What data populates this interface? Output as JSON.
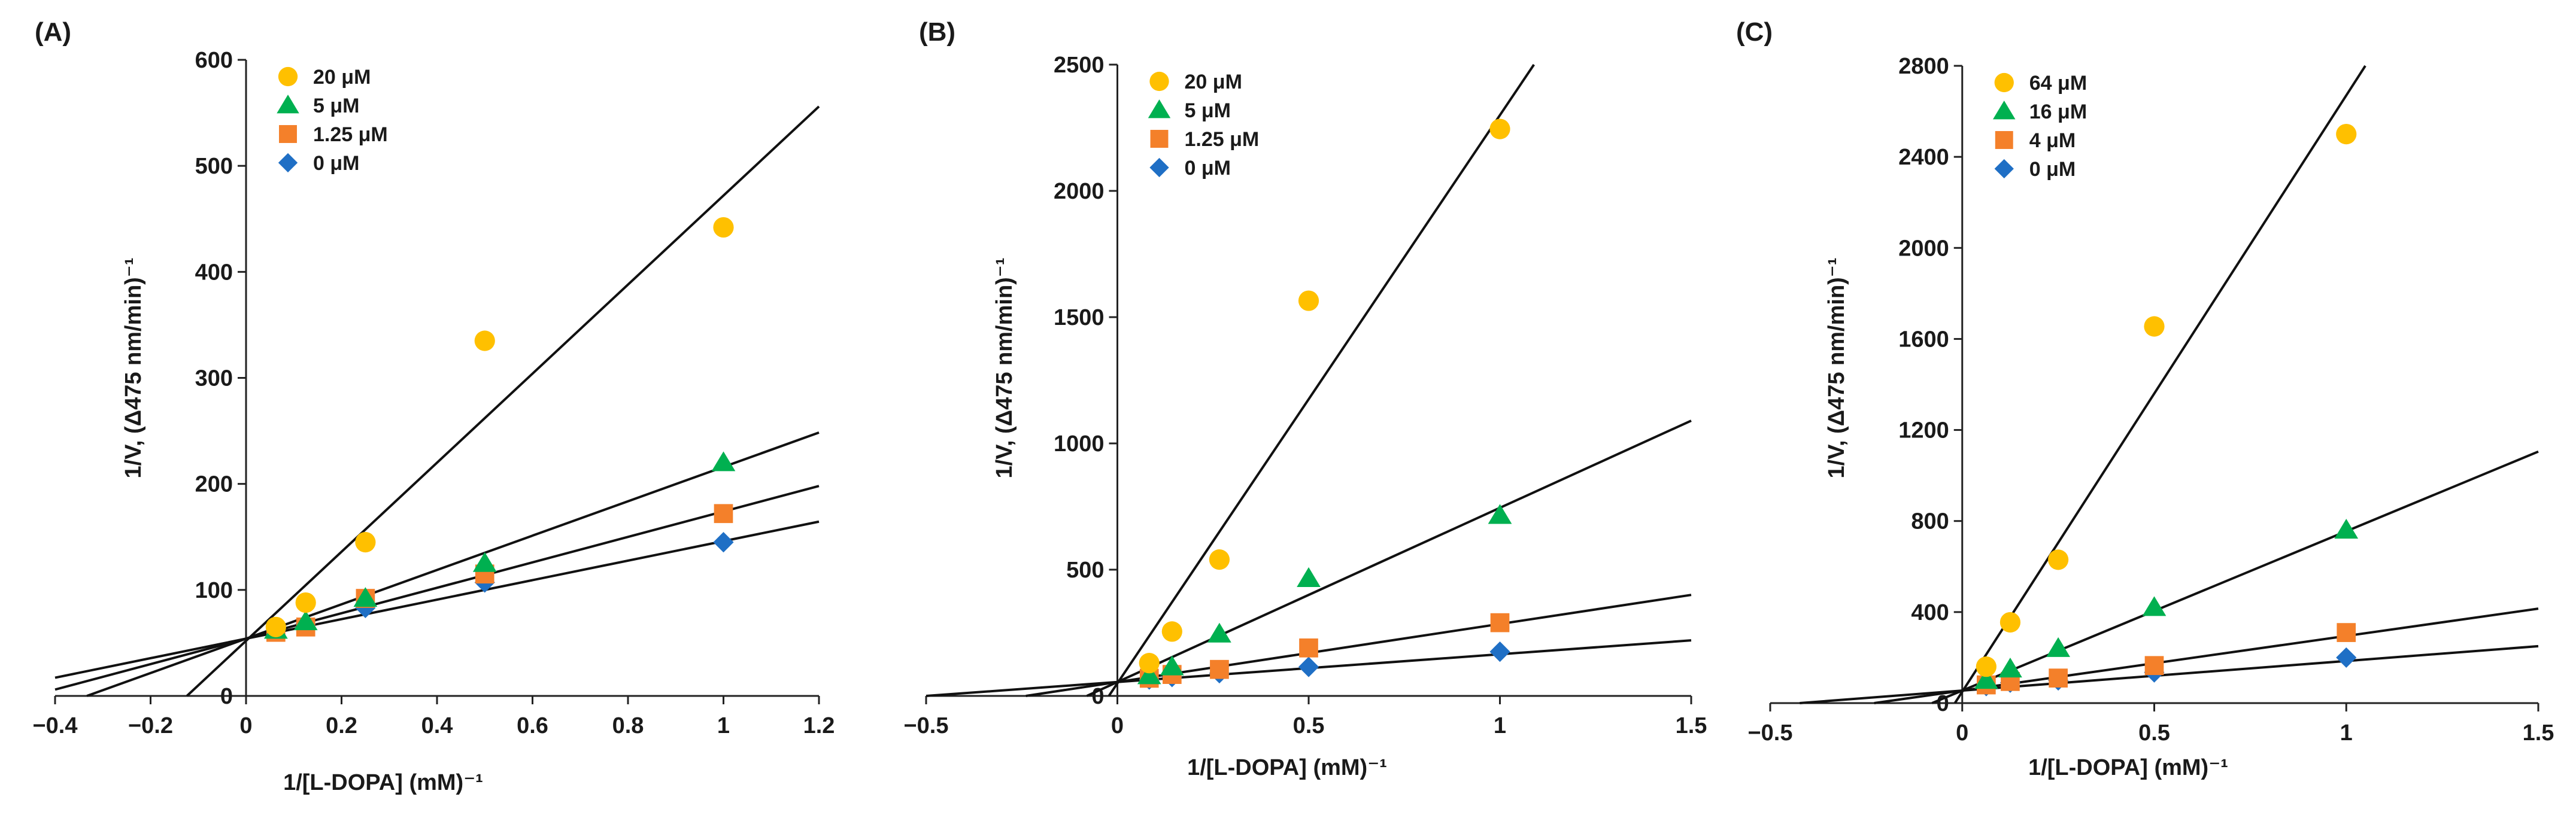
{
  "chart_data": [
    {
      "panel_label": "(A)",
      "type": "scatter",
      "xlabel": "1/[L-DOPA] (mM)⁻¹",
      "ylabel": "1/V, (Δ475 nm/min)⁻¹",
      "xlim": [
        -0.4,
        1.2
      ],
      "ylim": [
        0,
        600
      ],
      "x_ticks": [
        -0.4,
        -0.2,
        0,
        0.2,
        0.4,
        0.6,
        0.8,
        1,
        1.2
      ],
      "x_tick_labels": [
        "−0.4",
        "−0.2",
        "0",
        "0.2",
        "0.4",
        "0.6",
        "0.8",
        "1",
        "1.2"
      ],
      "y_ticks": [
        0,
        100,
        200,
        300,
        400,
        500,
        600
      ],
      "y_tick_labels": [
        "0",
        "100",
        "200",
        "300",
        "400",
        "500",
        "600"
      ],
      "legend_position": "top-left",
      "series": [
        {
          "name": "20 μM",
          "marker": "circle",
          "color": "#FFC000",
          "x": [
            0.0625,
            0.125,
            0.25,
            0.5,
            1.0
          ],
          "y": [
            65,
            88,
            145,
            335,
            442
          ],
          "fit": {
            "slope": 420,
            "intercept": 52
          }
        },
        {
          "name": "5 μM",
          "marker": "triangle",
          "color": "#00B050",
          "x": [
            0.0625,
            0.125,
            0.25,
            0.5,
            1.0
          ],
          "y": [
            62,
            70,
            92,
            125,
            220
          ],
          "fit": {
            "slope": 162,
            "intercept": 54
          }
        },
        {
          "name": "1.25 μM",
          "marker": "square",
          "color": "#F4802A",
          "x": [
            0.0625,
            0.125,
            0.25,
            0.5,
            1.0
          ],
          "y": [
            60,
            65,
            92,
            115,
            172
          ],
          "fit": {
            "slope": 120,
            "intercept": 54
          }
        },
        {
          "name": "0 μM",
          "marker": "diamond",
          "color": "#1F6FC5",
          "x": [
            0.0625,
            0.125,
            0.25,
            0.5,
            1.0
          ],
          "y": [
            62,
            68,
            83,
            107,
            145
          ],
          "fit": {
            "slope": 92,
            "intercept": 54
          }
        }
      ]
    },
    {
      "panel_label": "(B)",
      "type": "scatter",
      "xlabel": "1/[L-DOPA] (mM)⁻¹",
      "ylabel": "1/V, (Δ475 nm/min)⁻¹",
      "xlim": [
        -0.5,
        1.5
      ],
      "ylim": [
        0,
        2500
      ],
      "x_ticks": [
        -0.5,
        0,
        0.5,
        1,
        1.5
      ],
      "x_tick_labels": [
        "−0.5",
        "0",
        "0.5",
        "1",
        "1.5"
      ],
      "y_ticks": [
        0,
        500,
        1000,
        1500,
        2000,
        2500
      ],
      "y_tick_labels": [
        "0",
        "500",
        "1000",
        "1500",
        "2000",
        "2500"
      ],
      "legend_position": "top-left",
      "series": [
        {
          "name": "20 μM",
          "marker": "circle",
          "color": "#FFC000",
          "x": [
            0.0833,
            0.1429,
            0.2667,
            0.5,
            1.0
          ],
          "y": [
            130,
            255,
            540,
            1565,
            2245
          ],
          "fit": {
            "slope": 2250,
            "intercept": 50
          }
        },
        {
          "name": "5 μM",
          "marker": "triangle",
          "color": "#00B050",
          "x": [
            0.0833,
            0.1429,
            0.2667,
            0.5,
            1.0
          ],
          "y": [
            80,
            115,
            245,
            465,
            715
          ],
          "fit": {
            "slope": 690,
            "intercept": 55
          }
        },
        {
          "name": "1.25 μM",
          "marker": "square",
          "color": "#F4802A",
          "x": [
            0.0833,
            0.1429,
            0.2667,
            0.5,
            1.0
          ],
          "y": [
            70,
            85,
            105,
            190,
            290
          ],
          "fit": {
            "slope": 230,
            "intercept": 55
          }
        },
        {
          "name": "0 μM",
          "marker": "diamond",
          "color": "#1F6FC5",
          "x": [
            0.0833,
            0.1429,
            0.2667,
            0.5,
            1.0
          ],
          "y": [
            65,
            75,
            90,
            115,
            175
          ],
          "fit": {
            "slope": 110,
            "intercept": 55
          }
        }
      ]
    },
    {
      "panel_label": "(C)",
      "type": "scatter",
      "xlabel": "1/[L-DOPA] (mM)⁻¹",
      "ylabel": "1/V, (Δ475 nm/min)⁻¹",
      "xlim": [
        -0.5,
        1.5
      ],
      "ylim": [
        0,
        2800
      ],
      "x_ticks": [
        -0.5,
        0,
        0.5,
        1,
        1.5
      ],
      "x_tick_labels": [
        "−0.5",
        "0",
        "0.5",
        "1",
        "1.5"
      ],
      "y_ticks": [
        0,
        400,
        800,
        1200,
        1600,
        2000,
        2400,
        2800
      ],
      "y_tick_labels": [
        "0",
        "400",
        "800",
        "1200",
        "1600",
        "2000",
        "2400",
        "2800"
      ],
      "legend_position": "top-left",
      "series": [
        {
          "name": "64 μM",
          "marker": "circle",
          "color": "#FFC000",
          "x": [
            0.0625,
            0.125,
            0.25,
            0.5,
            1.0
          ],
          "y": [
            160,
            355,
            630,
            1655,
            2500
          ],
          "fit": {
            "slope": 2620,
            "intercept": 50
          }
        },
        {
          "name": "16 μM",
          "marker": "triangle",
          "color": "#00B050",
          "x": [
            0.0625,
            0.125,
            0.25,
            0.5,
            1.0
          ],
          "y": [
            100,
            150,
            240,
            420,
            760
          ],
          "fit": {
            "slope": 700,
            "intercept": 55
          }
        },
        {
          "name": "4 μM",
          "marker": "square",
          "color": "#F4802A",
          "x": [
            0.0625,
            0.125,
            0.25,
            0.5,
            1.0
          ],
          "y": [
            80,
            95,
            110,
            165,
            310
          ],
          "fit": {
            "slope": 240,
            "intercept": 55
          }
        },
        {
          "name": "0 μM",
          "marker": "diamond",
          "color": "#1F6FC5",
          "x": [
            0.0625,
            0.125,
            0.25,
            0.5,
            1.0
          ],
          "y": [
            75,
            90,
            100,
            135,
            200
          ],
          "fit": {
            "slope": 130,
            "intercept": 55
          }
        }
      ]
    }
  ]
}
